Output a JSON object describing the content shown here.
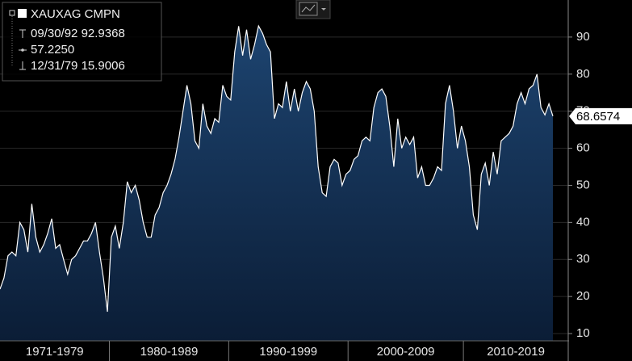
{
  "chart_data": {
    "type": "area",
    "categories": [
      "1971-1979",
      "1980-1989",
      "1990-1999",
      "2000-2009",
      "2010-2019"
    ],
    "series": [
      {
        "name": "XAUXAG CMPN",
        "color": "#ffffff",
        "values": [
          [
            22,
            25,
            31,
            32,
            31,
            40,
            38,
            32,
            45,
            36,
            32,
            34,
            37,
            41,
            33,
            34,
            30,
            26,
            30,
            31,
            33,
            35,
            35,
            37,
            40,
            32,
            25,
            15.9006
          ],
          [
            36,
            39,
            33,
            40,
            51,
            48,
            50,
            46,
            40,
            36,
            36,
            42,
            44,
            48,
            50,
            53,
            57,
            63,
            70,
            77,
            72,
            62,
            60,
            72,
            66,
            64,
            68,
            67,
            77,
            74
          ],
          [
            73,
            86,
            92.9368,
            85,
            92,
            84,
            88,
            93,
            91,
            88,
            86,
            68,
            72,
            71,
            78,
            70,
            76,
            70,
            75,
            78,
            76,
            70,
            55,
            48,
            47,
            55,
            57,
            56,
            50,
            53
          ],
          [
            54,
            57,
            58,
            62,
            63,
            62,
            71,
            75,
            76,
            74,
            66,
            55,
            68,
            60,
            63,
            61,
            63,
            52,
            55,
            50,
            50,
            52,
            55,
            54,
            72,
            77,
            70,
            60,
            66
          ],
          [
            62,
            55,
            42,
            38,
            53,
            56,
            50,
            59,
            53,
            62,
            63,
            64,
            66,
            72,
            75,
            72,
            76,
            77,
            80,
            71,
            69,
            72,
            68.6574
          ]
        ]
      }
    ],
    "high": {
      "date": "09/30/92",
      "value": 92.9368
    },
    "average": {
      "value": 57.225,
      "label": "57.2250"
    },
    "low": {
      "date": "12/31/79",
      "value": 15.9006
    },
    "ylim": [
      2.6,
      100
    ],
    "yticks": [
      10,
      20,
      30,
      40,
      50,
      60,
      70,
      80,
      90
    ],
    "grid": true
  }
}
